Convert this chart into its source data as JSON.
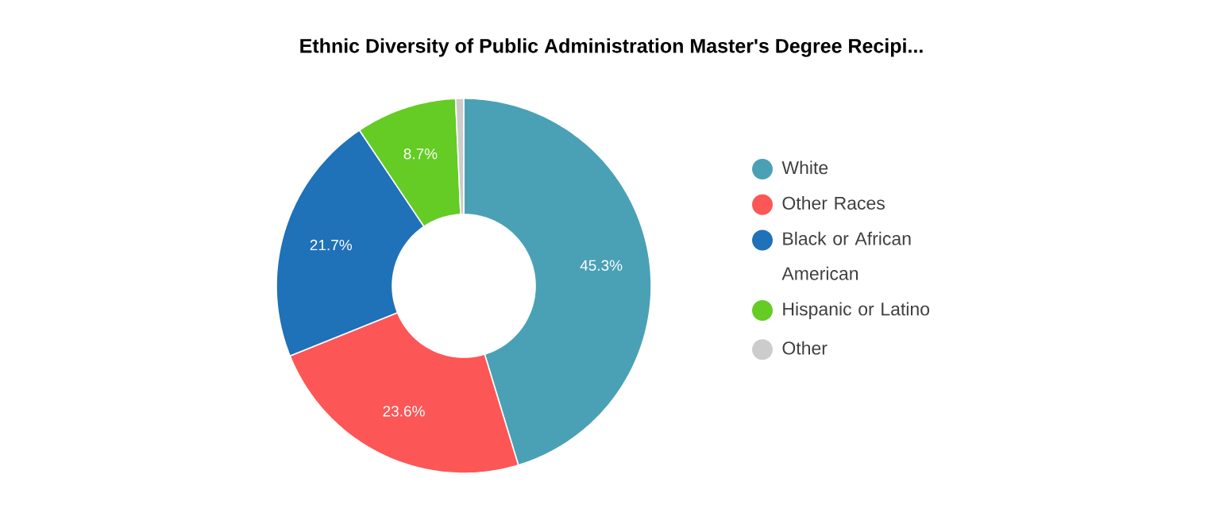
{
  "chart_data": {
    "type": "donut",
    "title": "Ethnic Diversity of Public Administration Master's Degree Recipi...",
    "categories": [
      "White",
      "Other Races",
      "Black or African American",
      "Hispanic or Latino",
      "Other"
    ],
    "values": [
      45.3,
      23.6,
      21.7,
      8.7,
      0.7
    ],
    "colors": [
      "#4aa1b5",
      "#fd5656",
      "#1f71b8",
      "#64cc24",
      "#cccccc"
    ],
    "value_labels": [
      "45.3%",
      "23.6%",
      "21.7%",
      "8.7%",
      null
    ],
    "legend": "right"
  }
}
